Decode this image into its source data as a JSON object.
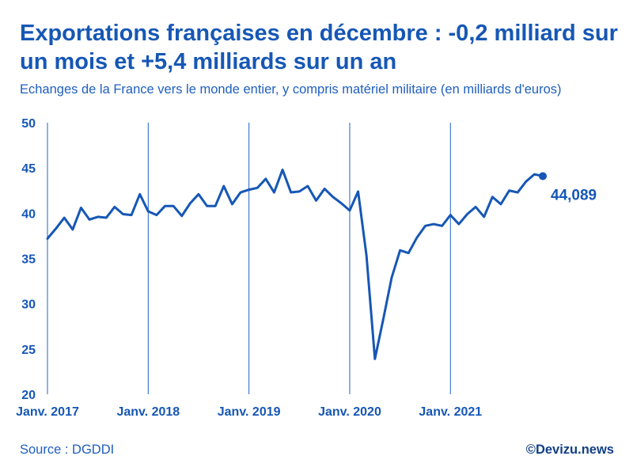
{
  "header": {
    "title": "Exportations françaises en décembre : -0,2 milliard sur un mois et +5,4 milliards sur un an",
    "subtitle": "Echanges de la France vers le monde entier, y compris matériel militaire (en milliards d'euros)"
  },
  "footer": {
    "source": "Source : DGDDI",
    "credit": "©Devizu.news"
  },
  "colors": {
    "text": "#1657b5",
    "line": "#1657b5",
    "grid": "#1f63c6",
    "credit": "#123f85"
  },
  "chart_data": {
    "type": "line",
    "title": "Exportations françaises en décembre : -0,2 milliard sur un mois et +5,4 milliards sur un an",
    "subtitle": "Echanges de la France vers le monde entier, y compris matériel militaire (en milliards d'euros)",
    "xlabel": "",
    "ylabel": "",
    "ylim": [
      20,
      50
    ],
    "yticks": [
      20,
      25,
      30,
      35,
      40,
      45,
      50
    ],
    "x_start": "Janv. 2017",
    "x_ticks": [
      {
        "index": 0,
        "label": "Janv. 2017"
      },
      {
        "index": 12,
        "label": "Janv. 2018"
      },
      {
        "index": 24,
        "label": "Janv. 2019"
      },
      {
        "index": 36,
        "label": "Janv. 2020"
      },
      {
        "index": 48,
        "label": "Janv. 2021"
      }
    ],
    "grid": "vertical lines at each January",
    "series": [
      {
        "name": "Exportations",
        "values": [
          37.2,
          38.3,
          39.5,
          38.2,
          40.6,
          39.3,
          39.6,
          39.5,
          40.7,
          39.9,
          39.8,
          42.1,
          40.2,
          39.8,
          40.8,
          40.8,
          39.7,
          41.1,
          42.1,
          40.8,
          40.8,
          43.0,
          41.0,
          42.3,
          42.6,
          42.8,
          43.8,
          42.3,
          44.8,
          42.3,
          42.4,
          43.0,
          41.4,
          42.7,
          41.8,
          41.1,
          40.3,
          42.4,
          35.3,
          23.9,
          28.3,
          32.9,
          35.9,
          35.6,
          37.3,
          38.6,
          38.8,
          38.6,
          39.8,
          38.8,
          39.9,
          40.7,
          39.6,
          41.8,
          41.0,
          42.5,
          42.3,
          43.5,
          44.3,
          44.1
        ],
        "last_label": "44,089"
      }
    ]
  }
}
